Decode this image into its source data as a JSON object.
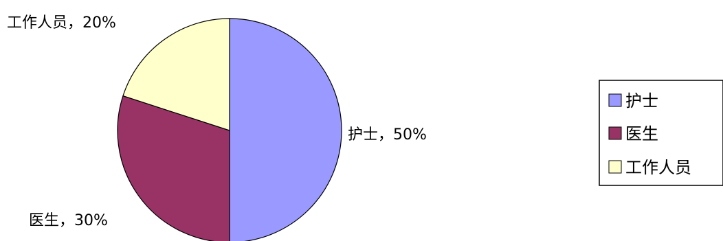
{
  "chart_data": {
    "type": "pie",
    "title": "",
    "legend_position": "right",
    "slices": [
      {
        "label": "护士",
        "value": 50,
        "percent_label": "护士，50%",
        "color": "#9999FF"
      },
      {
        "label": "医生",
        "value": 30,
        "percent_label": "医生，30%",
        "color": "#993366"
      },
      {
        "label": "工作人员",
        "value": 20,
        "percent_label": "工作人员，20%",
        "color": "#FFFFCC"
      }
    ],
    "legend": [
      "护士",
      "医生",
      "工作人员"
    ]
  }
}
